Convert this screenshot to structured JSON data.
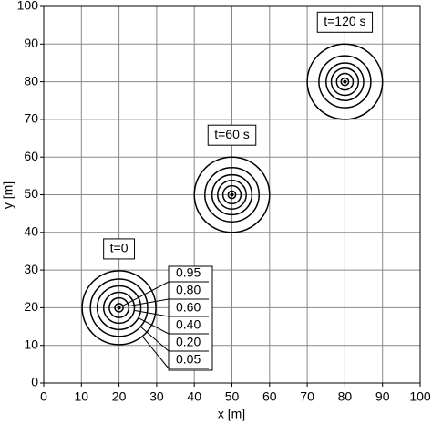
{
  "chart_data": {
    "type": "contour",
    "xlabel": "x [m]",
    "ylabel": "y [m]",
    "xlim": [
      0,
      100
    ],
    "ylim": [
      0,
      100
    ],
    "xticks": [
      0,
      10,
      20,
      30,
      40,
      50,
      60,
      70,
      80,
      90,
      100
    ],
    "yticks": [
      0,
      10,
      20,
      30,
      40,
      50,
      60,
      70,
      80,
      90,
      100
    ],
    "grid": true,
    "color": "#000000",
    "levels": [
      0.95,
      {
        "value": 0.8,
        "label": "0.80"
      },
      {
        "value": 0.6,
        "label": "0.60"
      },
      {
        "value": 0.4,
        "label": "0.40"
      },
      {
        "value": 0.2,
        "label": "0.20"
      },
      0.05
    ],
    "series": [
      {
        "name": "t=0",
        "x": 20,
        "y": 20,
        "radii": [
          1.1,
          2.6,
          4.1,
          5.8,
          7.6,
          9.8
        ]
      },
      {
        "name": "t=60 s",
        "x": 50,
        "y": 50,
        "radii": [
          1.0,
          2.4,
          3.8,
          5.3,
          7.2,
          10
        ]
      },
      {
        "name": "t=120 s",
        "x": 80,
        "y": 80,
        "radii": [
          1.0,
          2.2,
          3.6,
          5.0,
          6.9,
          10
        ]
      }
    ]
  }
}
